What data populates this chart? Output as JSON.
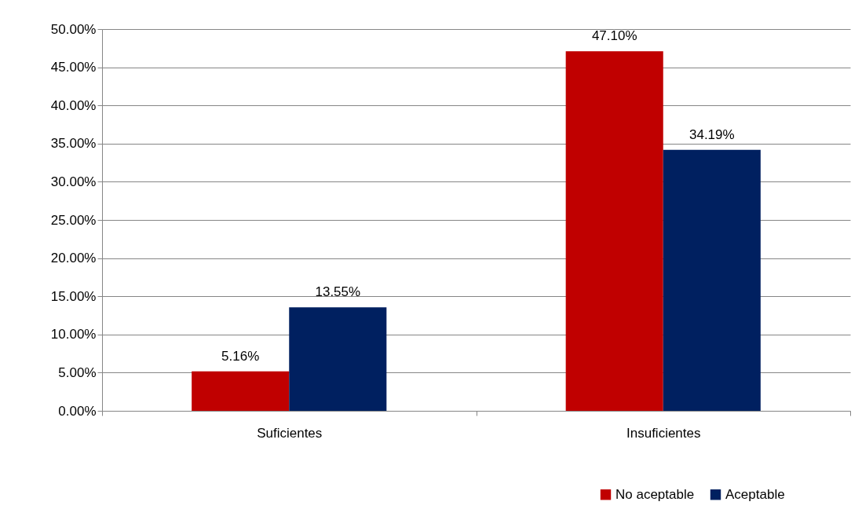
{
  "chart_data": {
    "type": "bar",
    "categories": [
      "Suficientes",
      "Insuficientes"
    ],
    "series": [
      {
        "name": "No aceptable",
        "color": "#c00000",
        "values": [
          5.16,
          47.1
        ],
        "value_labels": [
          "5.16%",
          "47.10%"
        ]
      },
      {
        "name": "Aceptable",
        "color": "#002060",
        "values": [
          13.55,
          34.19
        ],
        "value_labels": [
          "13.55%",
          "34.19%"
        ]
      }
    ],
    "ylim": [
      0,
      50
    ],
    "yticks": [
      {
        "value": 0,
        "label": "0.00%"
      },
      {
        "value": 5,
        "label": "5.00%"
      },
      {
        "value": 10,
        "label": "10.00%"
      },
      {
        "value": 15,
        "label": "15.00%"
      },
      {
        "value": 20,
        "label": "20.00%"
      },
      {
        "value": 25,
        "label": "25.00%"
      },
      {
        "value": 30,
        "label": "30.00%"
      },
      {
        "value": 35,
        "label": "35.00%"
      },
      {
        "value": 40,
        "label": "40.00%"
      },
      {
        "value": 45,
        "label": "45.00%"
      },
      {
        "value": 50,
        "label": "50.00%"
      }
    ],
    "grid": "y",
    "legend": "bottom right"
  }
}
